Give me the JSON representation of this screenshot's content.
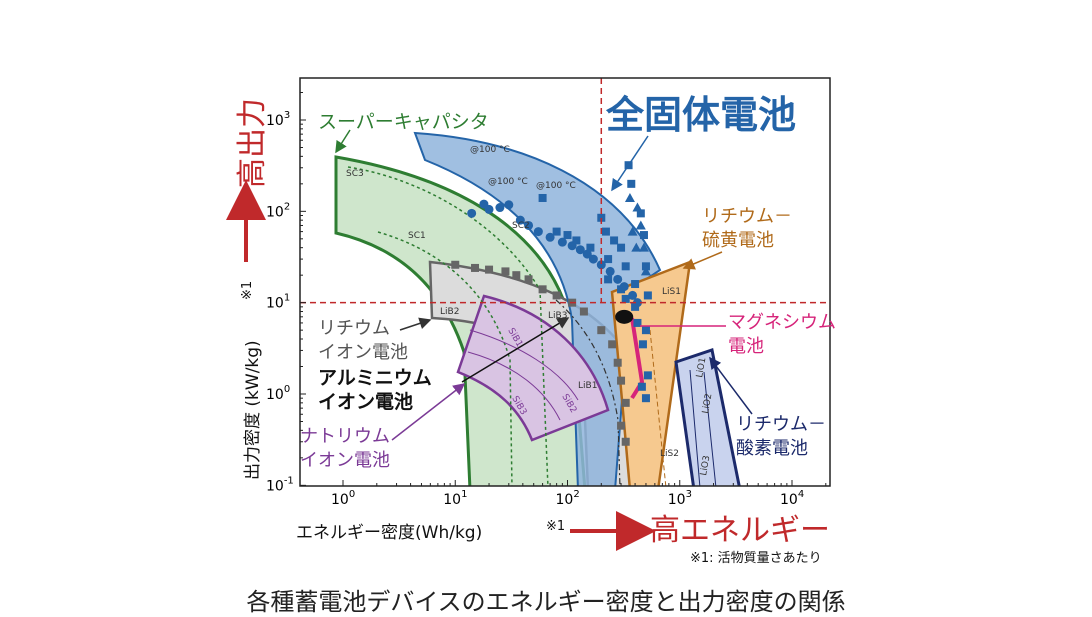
{
  "chart_data": {
    "type": "scatter",
    "x_scale": "log",
    "y_scale": "log",
    "xlim": [
      0.4,
      5000
    ],
    "ylim": [
      0.1,
      3000
    ],
    "x_ticks": [
      {
        "value": 1,
        "base": "10",
        "exp": "0"
      },
      {
        "value": 10,
        "base": "10",
        "exp": "1"
      },
      {
        "value": 100,
        "base": "10",
        "exp": "2"
      },
      {
        "value": 1000,
        "base": "10",
        "exp": "3"
      },
      {
        "value": 10000,
        "base": "10",
        "exp": "4"
      }
    ],
    "y_ticks": [
      {
        "value": 0.1,
        "base": "10",
        "exp": "-1"
      },
      {
        "value": 1,
        "base": "10",
        "exp": "0"
      },
      {
        "value": 10,
        "base": "10",
        "exp": "1"
      },
      {
        "value": 100,
        "base": "10",
        "exp": "2"
      },
      {
        "value": 1000,
        "base": "10",
        "exp": "3"
      }
    ],
    "xlabel": "エネルギー密度(Wh/kg)",
    "xlabel_mark": "※1",
    "ylabel": "出力密度 (kW/kg)",
    "ylabel_mark": "※1",
    "x_arrow_label": "高エネルギー",
    "y_arrow_label": "高出力",
    "reference_lines": {
      "x": 200,
      "y": 10,
      "color": "#c0292b",
      "style": "dashed"
    },
    "regions": [
      {
        "name": "スーパーキャパシタ",
        "color": "#2e7d32",
        "fill": "#cfe6cc",
        "sub_labels": [
          "SC3",
          "SC1",
          "SC2"
        ]
      },
      {
        "name": "全固体電池",
        "color": "#2464a8",
        "fill": "#8fb4dc",
        "sub_labels": [
          "@100 °C",
          "@100 °C",
          "@100 °C"
        ]
      },
      {
        "name": "リチウム－硫黄電池",
        "color": "#b06a1a",
        "fill": "#f6c98f",
        "sub_labels": [
          "LiS1",
          "LiS2"
        ]
      },
      {
        "name": "マグネシウム電池",
        "color": "#d6247a",
        "fill": "none",
        "sub_labels": []
      },
      {
        "name": "リチウム－酸素電池",
        "color": "#1c2a6b",
        "fill": "#c9d3ee",
        "sub_labels": [
          "LiO1",
          "LiO2",
          "LiO3"
        ]
      },
      {
        "name": "リチウムイオン電池",
        "color": "#555555",
        "fill": "#dcdcdc",
        "sub_labels": [
          "LiB2",
          "LiB3",
          "LiB1"
        ]
      },
      {
        "name": "ナトリウムイオン電池",
        "color": "#7b3a96",
        "fill": "#d9c4e3",
        "sub_labels": [
          "SiB1",
          "SiB3",
          "SiB2"
        ]
      },
      {
        "name": "アルミニウムイオン電池",
        "color": "#111111",
        "point": [
          320,
          7
        ]
      }
    ],
    "series": [
      {
        "marker": "circle",
        "color": "#2464a8",
        "points": [
          [
            14,
            95
          ],
          [
            18,
            120
          ],
          [
            20,
            105
          ],
          [
            25,
            110
          ],
          [
            30,
            118
          ],
          [
            38,
            80
          ],
          [
            45,
            70
          ],
          [
            55,
            60
          ],
          [
            70,
            52
          ],
          [
            90,
            46
          ],
          [
            110,
            42
          ],
          [
            130,
            38
          ],
          [
            150,
            34
          ],
          [
            170,
            30
          ],
          [
            200,
            26
          ],
          [
            240,
            22
          ],
          [
            280,
            18
          ],
          [
            320,
            15
          ],
          [
            380,
            12
          ],
          [
            420,
            10
          ]
        ]
      },
      {
        "marker": "square",
        "color": "#2464a8",
        "points": [
          [
            60,
            140
          ],
          [
            80,
            60
          ],
          [
            100,
            55
          ],
          [
            120,
            48
          ],
          [
            160,
            40
          ],
          [
            200,
            85
          ],
          [
            220,
            60
          ],
          [
            230,
            30
          ],
          [
            260,
            48
          ],
          [
            300,
            40
          ],
          [
            330,
            25
          ],
          [
            350,
            320
          ],
          [
            370,
            200
          ],
          [
            400,
            16
          ],
          [
            450,
            95
          ],
          [
            480,
            55
          ],
          [
            500,
            25
          ],
          [
            520,
            12
          ],
          [
            230,
            18
          ],
          [
            300,
            14
          ],
          [
            330,
            11
          ],
          [
            400,
            9
          ],
          [
            420,
            6
          ],
          [
            500,
            5
          ],
          [
            470,
            3.5
          ],
          [
            520,
            1.6
          ],
          [
            460,
            1.2
          ],
          [
            500,
            0.9
          ]
        ]
      },
      {
        "marker": "triangle",
        "color": "#2464a8",
        "points": [
          [
            360,
            140
          ],
          [
            420,
            110
          ],
          [
            450,
            70
          ],
          [
            480,
            40
          ],
          [
            500,
            22
          ],
          [
            380,
            60
          ],
          [
            410,
            40
          ]
        ]
      },
      {
        "marker": "gray-square",
        "color": "#666666",
        "points": [
          [
            10,
            26
          ],
          [
            15,
            24
          ],
          [
            20,
            23
          ],
          [
            28,
            22
          ],
          [
            35,
            20
          ],
          [
            45,
            18
          ],
          [
            60,
            14
          ],
          [
            80,
            12
          ],
          [
            110,
            10
          ],
          [
            140,
            8
          ],
          [
            200,
            5
          ],
          [
            250,
            3.5
          ],
          [
            280,
            2.2
          ],
          [
            300,
            1.4
          ],
          [
            330,
            0.8
          ],
          [
            300,
            0.45
          ],
          [
            330,
            0.3
          ]
        ]
      }
    ]
  },
  "labels": {
    "supercap": "スーパーキャパシタ",
    "solid_state": "全固体電池",
    "li_s": [
      "リチウム－",
      "硫黄電池"
    ],
    "mg": [
      "マグネシウム",
      "電池"
    ],
    "li_ion": [
      "リチウム",
      "イオン電池"
    ],
    "al_ion": [
      "アルミニウム",
      "イオン電池"
    ],
    "na_ion": [
      "ナトリウム",
      "イオン電池"
    ],
    "li_o2": [
      "リチウム－",
      "酸素電池"
    ]
  },
  "footnote": "※1: 活物質量さあたり",
  "caption": "各種蓄電池デバイスのエネルギー密度と出力密度の関係"
}
